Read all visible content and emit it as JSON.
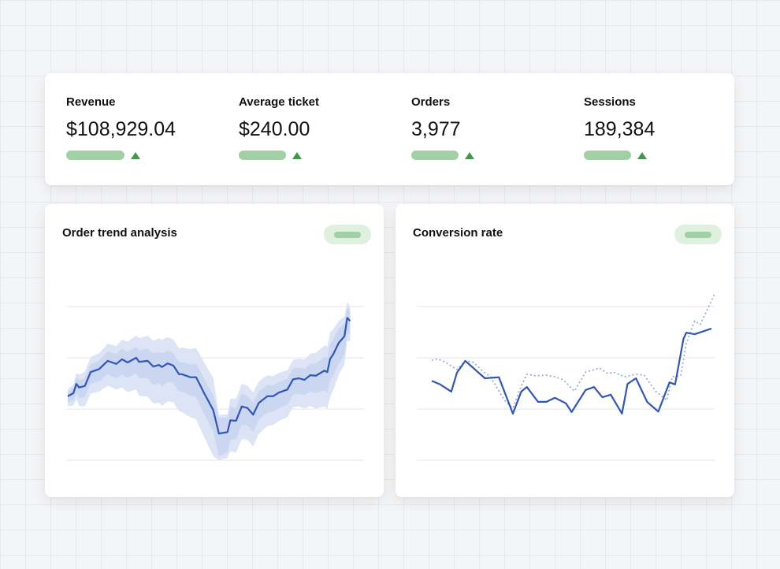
{
  "colors": {
    "accent": "#2f56b8",
    "band_outer": "#dde4f5",
    "band_inner": "#cbd6f0",
    "positive_bar": "#a3cfa5",
    "positive_arrow": "#3d9a45",
    "pill_bg": "#dff0df",
    "grid": "#e3e5ea"
  },
  "kpis": [
    {
      "label": "Revenue",
      "value": "$108,929.04",
      "trend": "up"
    },
    {
      "label": "Average ticket",
      "value": "$240.00",
      "trend": "up"
    },
    {
      "label": "Orders",
      "value": "3,977",
      "trend": "up"
    },
    {
      "label": "Sessions",
      "value": "189,384",
      "trend": "up"
    }
  ],
  "chart_data": [
    {
      "type": "line",
      "title": "Order trend analysis",
      "xlabel": "",
      "ylabel": "",
      "xlim": [
        0,
        100
      ],
      "ylim": [
        0,
        3
      ],
      "grid": "horizontal",
      "legend": "none",
      "x": [
        0,
        2,
        3,
        4,
        6,
        8,
        11,
        14,
        17,
        19,
        21,
        24,
        25,
        28,
        30,
        32,
        33,
        35,
        37,
        39,
        40,
        43,
        45,
        48,
        51,
        53,
        56,
        57,
        59,
        61,
        63,
        65,
        67,
        70,
        72,
        74,
        77,
        79,
        81,
        83,
        85,
        87,
        90,
        91,
        92,
        93,
        95,
        97,
        98,
        99
      ],
      "series": [
        {
          "values": [
            1.25,
            1.31,
            1.49,
            1.42,
            1.45,
            1.72,
            1.78,
            1.94,
            1.88,
            1.97,
            1.91,
            2.0,
            1.92,
            1.94,
            1.83,
            1.86,
            1.82,
            1.89,
            1.85,
            1.68,
            1.68,
            1.62,
            1.62,
            1.29,
            0.98,
            0.52,
            0.55,
            0.78,
            0.77,
            1.05,
            1.02,
            0.89,
            1.12,
            1.25,
            1.25,
            1.32,
            1.38,
            1.58,
            1.6,
            1.57,
            1.66,
            1.65,
            1.75,
            1.72,
            1.98,
            2.06,
            2.29,
            2.42,
            2.78,
            2.72
          ]
        }
      ],
      "inner_band_spread": [
        0.12,
        0.14,
        0.18,
        0.2,
        0.22,
        0.22,
        0.24,
        0.26,
        0.28,
        0.3,
        0.3,
        0.3,
        0.32,
        0.34,
        0.36,
        0.36,
        0.38,
        0.36,
        0.34,
        0.34,
        0.34,
        0.36,
        0.38,
        0.4,
        0.42,
        0.44,
        0.4,
        0.38,
        0.36,
        0.36,
        0.34,
        0.34,
        0.32,
        0.32,
        0.3,
        0.3,
        0.3,
        0.3,
        0.3,
        0.3,
        0.32,
        0.34,
        0.38,
        0.4,
        0.42,
        0.42,
        0.4,
        0.36,
        0.3,
        0.26
      ],
      "outer_band_spread": [
        0.2,
        0.24,
        0.3,
        0.36,
        0.4,
        0.42,
        0.44,
        0.48,
        0.5,
        0.55,
        0.58,
        0.62,
        0.66,
        0.7,
        0.72,
        0.74,
        0.76,
        0.74,
        0.72,
        0.72,
        0.74,
        0.78,
        0.82,
        0.86,
        0.9,
        0.52,
        0.5,
        0.6,
        0.62,
        0.64,
        0.62,
        0.62,
        0.6,
        0.58,
        0.56,
        0.55,
        0.54,
        0.54,
        0.55,
        0.56,
        0.6,
        0.64,
        0.7,
        0.72,
        0.74,
        0.7,
        0.62,
        0.55,
        0.45,
        0.4
      ]
    },
    {
      "type": "line",
      "title": "Conversion rate",
      "xlabel": "",
      "ylabel": "",
      "xlim": [
        0,
        100
      ],
      "ylim": [
        0,
        3
      ],
      "grid": "horizontal",
      "legend": "none",
      "series": [
        {
          "style": "solid",
          "x": [
            0,
            3,
            7,
            9,
            12,
            19,
            24,
            29,
            32,
            34,
            38,
            41,
            44,
            48,
            50,
            55,
            58,
            61,
            64,
            68,
            70,
            73,
            77,
            81,
            85,
            87,
            90,
            91,
            94,
            100
          ],
          "values": [
            1.55,
            1.48,
            1.34,
            1.71,
            1.94,
            1.6,
            1.62,
            0.91,
            1.34,
            1.43,
            1.14,
            1.14,
            1.22,
            1.11,
            0.94,
            1.37,
            1.43,
            1.23,
            1.28,
            0.91,
            1.49,
            1.6,
            1.14,
            0.95,
            1.52,
            1.48,
            2.37,
            2.49,
            2.46,
            2.57
          ]
        },
        {
          "style": "dotted",
          "x": [
            0,
            2,
            5,
            9,
            12,
            15,
            18,
            21,
            26,
            29,
            32,
            34,
            37,
            41,
            44,
            47,
            51,
            55,
            60,
            63,
            65,
            69,
            73,
            76,
            80,
            84,
            86,
            89,
            91,
            94,
            96,
            101
          ],
          "values": [
            1.95,
            1.98,
            1.91,
            1.77,
            1.94,
            1.91,
            1.75,
            1.63,
            1.17,
            1.02,
            1.45,
            1.68,
            1.65,
            1.66,
            1.63,
            1.57,
            1.35,
            1.72,
            1.8,
            1.69,
            1.72,
            1.63,
            1.68,
            1.66,
            1.35,
            1.17,
            1.63,
            1.65,
            2.28,
            2.72,
            2.65,
            3.23
          ]
        }
      ]
    }
  ]
}
